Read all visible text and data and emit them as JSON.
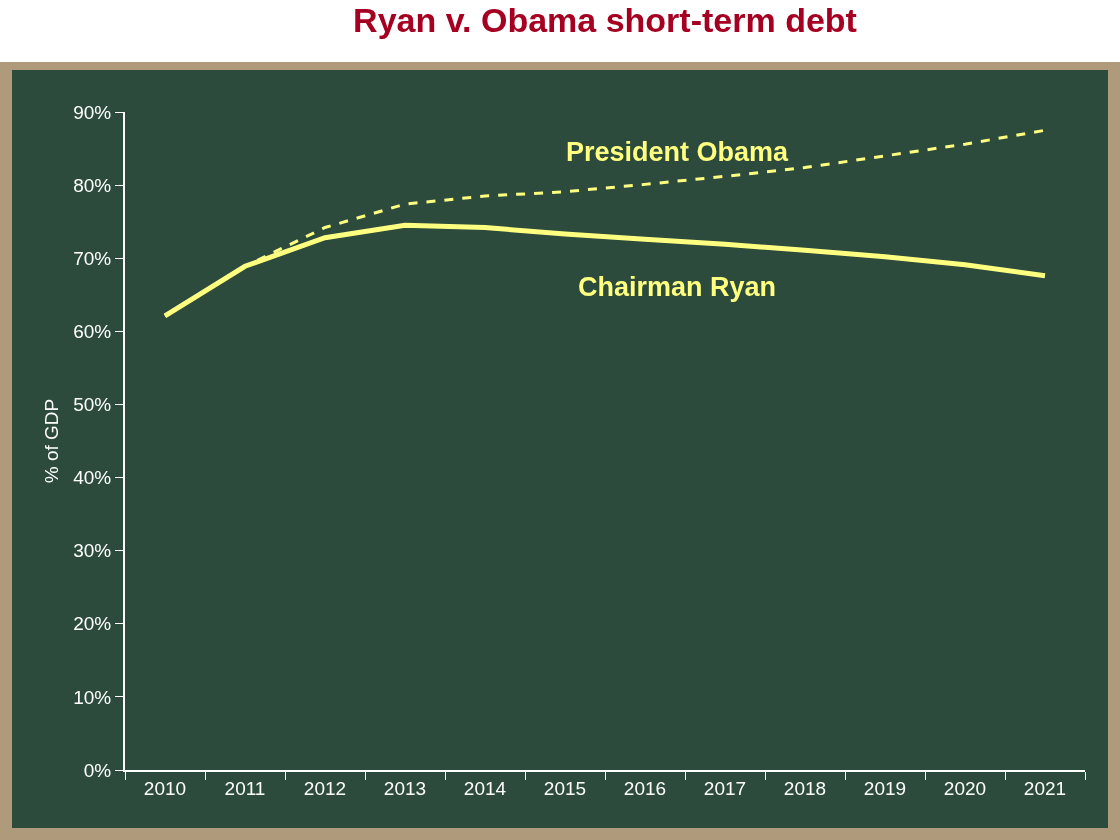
{
  "chart_data": {
    "type": "line",
    "title": "Ryan v. Obama short-term debt",
    "ylabel": "% of GDP",
    "categories": [
      "2010",
      "2011",
      "2012",
      "2013",
      "2014",
      "2015",
      "2016",
      "2017",
      "2018",
      "2019",
      "2020",
      "2021"
    ],
    "series": [
      {
        "name": "President Obama",
        "color": "#ffff80",
        "line_style": "dashed",
        "values": [
          62.1,
          68.9,
          74.2,
          77.4,
          78.5,
          79.1,
          80.1,
          81.2,
          82.4,
          84.0,
          85.6,
          87.5
        ]
      },
      {
        "name": "Chairman Ryan",
        "color": "#ffff80",
        "line_style": "solid",
        "values": [
          62.1,
          68.9,
          72.8,
          74.5,
          74.2,
          73.3,
          72.6,
          71.9,
          71.1,
          70.2,
          69.1,
          67.6
        ]
      }
    ],
    "ylim": [
      0,
      90
    ],
    "yticks": [
      {
        "value": 0,
        "label": "0%"
      },
      {
        "value": 10,
        "label": "10%"
      },
      {
        "value": 20,
        "label": "20%"
      },
      {
        "value": 30,
        "label": "30%"
      },
      {
        "value": 40,
        "label": "40%"
      },
      {
        "value": 50,
        "label": "50%"
      },
      {
        "value": 60,
        "label": "60%"
      },
      {
        "value": 70,
        "label": "70%"
      },
      {
        "value": 80,
        "label": "80%"
      },
      {
        "value": 90,
        "label": "90%"
      }
    ],
    "grid": false,
    "legend": false,
    "marker": "none"
  }
}
